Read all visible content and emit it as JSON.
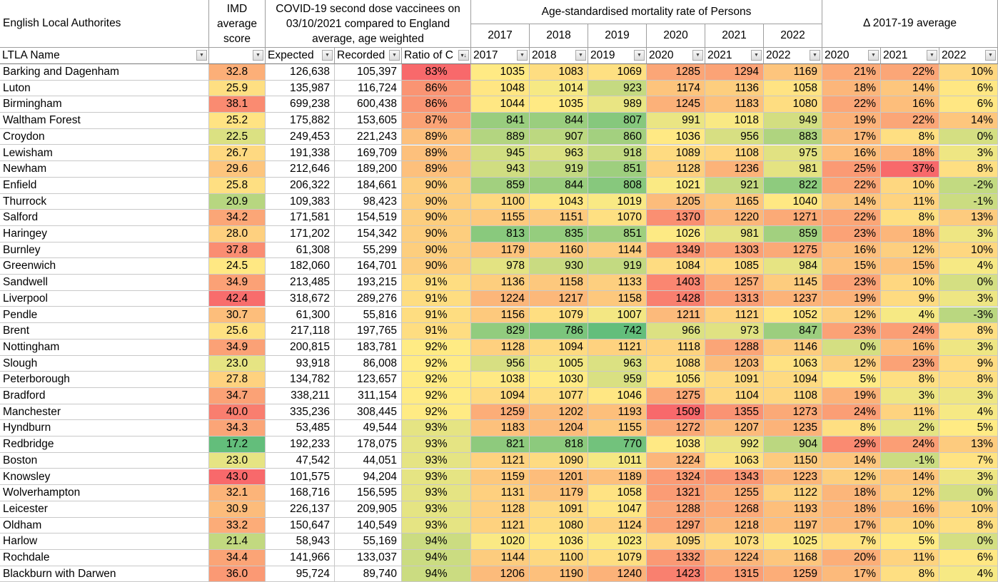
{
  "header": {
    "title": "English Local Authorites",
    "imd": "IMD average score",
    "covid": "COVID-19 second dose vaccinees on 03/10/2021 compared to England average, age weighted",
    "mortality": "Age-standardised mortality rate of Persons",
    "delta": "Δ 2017-19 average",
    "years": [
      "2017",
      "2018",
      "2019",
      "2020",
      "2021",
      "2022"
    ]
  },
  "filters": [
    "LTLA Name",
    "",
    "Expected",
    "Recorded",
    "Ratio of C",
    "2017",
    "2018",
    "2019",
    "2020",
    "2021",
    "2022",
    "2020",
    "2021",
    "2022"
  ],
  "colors": {
    "red": "#f8696b",
    "yellow": "#ffeb84",
    "green": "#63be7b",
    "grid": "#c8c8c8",
    "header_border": "#9e9e9e"
  },
  "icons": {
    "filter_dropdown": "dropdown-arrow-icon",
    "sort_dropdown": "sorted-filter-icon"
  },
  "rows": [
    {
      "name": "Barking and Dagenham",
      "imd": "32.8",
      "expected": "126,638",
      "recorded": "105,397",
      "ratio": "83%",
      "mort": [
        "1035",
        "1083",
        "1069",
        "1285",
        "1294",
        "1169"
      ],
      "delta": [
        "21%",
        "22%",
        "10%"
      ]
    },
    {
      "name": "Luton",
      "imd": "25.9",
      "expected": "135,987",
      "recorded": "116,724",
      "ratio": "86%",
      "mort": [
        "1048",
        "1014",
        "923",
        "1174",
        "1136",
        "1058"
      ],
      "delta": [
        "18%",
        "14%",
        "6%"
      ]
    },
    {
      "name": "Birmingham",
      "imd": "38.1",
      "expected": "699,238",
      "recorded": "600,438",
      "ratio": "86%",
      "mort": [
        "1044",
        "1035",
        "989",
        "1245",
        "1183",
        "1080"
      ],
      "delta": [
        "22%",
        "16%",
        "6%"
      ]
    },
    {
      "name": "Waltham Forest",
      "imd": "25.2",
      "expected": "175,882",
      "recorded": "153,605",
      "ratio": "87%",
      "mort": [
        "841",
        "844",
        "807",
        "991",
        "1018",
        "949"
      ],
      "delta": [
        "19%",
        "22%",
        "14%"
      ]
    },
    {
      "name": "Croydon",
      "imd": "22.5",
      "expected": "249,453",
      "recorded": "221,243",
      "ratio": "89%",
      "mort": [
        "889",
        "907",
        "860",
        "1036",
        "956",
        "883"
      ],
      "delta": [
        "17%",
        "8%",
        "0%"
      ]
    },
    {
      "name": "Lewisham",
      "imd": "26.7",
      "expected": "191,338",
      "recorded": "169,709",
      "ratio": "89%",
      "mort": [
        "945",
        "963",
        "918",
        "1089",
        "1108",
        "975"
      ],
      "delta": [
        "16%",
        "18%",
        "3%"
      ]
    },
    {
      "name": "Newham",
      "imd": "29.6",
      "expected": "212,646",
      "recorded": "189,200",
      "ratio": "89%",
      "mort": [
        "943",
        "919",
        "851",
        "1128",
        "1236",
        "981"
      ],
      "delta": [
        "25%",
        "37%",
        "8%"
      ]
    },
    {
      "name": "Enfield",
      "imd": "25.8",
      "expected": "206,322",
      "recorded": "184,661",
      "ratio": "90%",
      "mort": [
        "859",
        "844",
        "808",
        "1021",
        "921",
        "822"
      ],
      "delta": [
        "22%",
        "10%",
        "-2%"
      ]
    },
    {
      "name": "Thurrock",
      "imd": "20.9",
      "expected": "109,383",
      "recorded": "98,423",
      "ratio": "90%",
      "mort": [
        "1100",
        "1043",
        "1019",
        "1205",
        "1165",
        "1040"
      ],
      "delta": [
        "14%",
        "11%",
        "-1%"
      ]
    },
    {
      "name": "Salford",
      "imd": "34.2",
      "expected": "171,581",
      "recorded": "154,519",
      "ratio": "90%",
      "mort": [
        "1155",
        "1151",
        "1070",
        "1370",
        "1220",
        "1271"
      ],
      "delta": [
        "22%",
        "8%",
        "13%"
      ]
    },
    {
      "name": "Haringey",
      "imd": "28.0",
      "expected": "171,202",
      "recorded": "154,342",
      "ratio": "90%",
      "mort": [
        "813",
        "835",
        "851",
        "1026",
        "981",
        "859"
      ],
      "delta": [
        "23%",
        "18%",
        "3%"
      ]
    },
    {
      "name": "Burnley",
      "imd": "37.8",
      "expected": "61,308",
      "recorded": "55,299",
      "ratio": "90%",
      "mort": [
        "1179",
        "1160",
        "1144",
        "1349",
        "1303",
        "1275"
      ],
      "delta": [
        "16%",
        "12%",
        "10%"
      ]
    },
    {
      "name": "Greenwich",
      "imd": "24.5",
      "expected": "182,060",
      "recorded": "164,701",
      "ratio": "90%",
      "mort": [
        "978",
        "930",
        "919",
        "1084",
        "1085",
        "984"
      ],
      "delta": [
        "15%",
        "15%",
        "4%"
      ]
    },
    {
      "name": "Sandwell",
      "imd": "34.9",
      "expected": "213,485",
      "recorded": "193,215",
      "ratio": "91%",
      "mort": [
        "1136",
        "1158",
        "1133",
        "1403",
        "1257",
        "1145"
      ],
      "delta": [
        "23%",
        "10%",
        "0%"
      ]
    },
    {
      "name": "Liverpool",
      "imd": "42.4",
      "expected": "318,672",
      "recorded": "289,276",
      "ratio": "91%",
      "mort": [
        "1224",
        "1217",
        "1158",
        "1428",
        "1313",
        "1237"
      ],
      "delta": [
        "19%",
        "9%",
        "3%"
      ]
    },
    {
      "name": "Pendle",
      "imd": "30.7",
      "expected": "61,300",
      "recorded": "55,816",
      "ratio": "91%",
      "mort": [
        "1156",
        "1079",
        "1007",
        "1211",
        "1121",
        "1052"
      ],
      "delta": [
        "12%",
        "4%",
        "-3%"
      ]
    },
    {
      "name": "Brent",
      "imd": "25.6",
      "expected": "217,118",
      "recorded": "197,765",
      "ratio": "91%",
      "mort": [
        "829",
        "786",
        "742",
        "966",
        "973",
        "847"
      ],
      "delta": [
        "23%",
        "24%",
        "8%"
      ]
    },
    {
      "name": "Nottingham",
      "imd": "34.9",
      "expected": "200,815",
      "recorded": "183,781",
      "ratio": "92%",
      "mort": [
        "1128",
        "1094",
        "1121",
        "1118",
        "1288",
        "1146"
      ],
      "delta": [
        "0%",
        "16%",
        "3%"
      ]
    },
    {
      "name": "Slough",
      "imd": "23.0",
      "expected": "93,918",
      "recorded": "86,008",
      "ratio": "92%",
      "mort": [
        "956",
        "1005",
        "963",
        "1088",
        "1203",
        "1063"
      ],
      "delta": [
        "12%",
        "23%",
        "9%"
      ]
    },
    {
      "name": "Peterborough",
      "imd": "27.8",
      "expected": "134,782",
      "recorded": "123,657",
      "ratio": "92%",
      "mort": [
        "1038",
        "1030",
        "959",
        "1056",
        "1091",
        "1094"
      ],
      "delta": [
        "5%",
        "8%",
        "8%"
      ]
    },
    {
      "name": "Bradford",
      "imd": "34.7",
      "expected": "338,211",
      "recorded": "311,154",
      "ratio": "92%",
      "mort": [
        "1094",
        "1077",
        "1046",
        "1275",
        "1104",
        "1108"
      ],
      "delta": [
        "19%",
        "3%",
        "3%"
      ]
    },
    {
      "name": "Manchester",
      "imd": "40.0",
      "expected": "335,236",
      "recorded": "308,445",
      "ratio": "92%",
      "mort": [
        "1259",
        "1202",
        "1193",
        "1509",
        "1355",
        "1273"
      ],
      "delta": [
        "24%",
        "11%",
        "4%"
      ]
    },
    {
      "name": "Hyndburn",
      "imd": "34.3",
      "expected": "53,485",
      "recorded": "49,544",
      "ratio": "93%",
      "mort": [
        "1183",
        "1204",
        "1155",
        "1272",
        "1207",
        "1235"
      ],
      "delta": [
        "8%",
        "2%",
        "5%"
      ]
    },
    {
      "name": "Redbridge",
      "imd": "17.2",
      "expected": "192,233",
      "recorded": "178,075",
      "ratio": "93%",
      "mort": [
        "821",
        "818",
        "770",
        "1038",
        "992",
        "904"
      ],
      "delta": [
        "29%",
        "24%",
        "13%"
      ]
    },
    {
      "name": "Boston",
      "imd": "23.0",
      "expected": "47,542",
      "recorded": "44,051",
      "ratio": "93%",
      "mort": [
        "1121",
        "1090",
        "1011",
        "1224",
        "1063",
        "1150"
      ],
      "delta": [
        "14%",
        "-1%",
        "7%"
      ]
    },
    {
      "name": "Knowsley",
      "imd": "43.0",
      "expected": "101,575",
      "recorded": "94,204",
      "ratio": "93%",
      "mort": [
        "1159",
        "1201",
        "1189",
        "1324",
        "1343",
        "1223"
      ],
      "delta": [
        "12%",
        "14%",
        "3%"
      ]
    },
    {
      "name": "Wolverhampton",
      "imd": "32.1",
      "expected": "168,716",
      "recorded": "156,595",
      "ratio": "93%",
      "mort": [
        "1131",
        "1179",
        "1058",
        "1321",
        "1255",
        "1122"
      ],
      "delta": [
        "18%",
        "12%",
        "0%"
      ]
    },
    {
      "name": "Leicester",
      "imd": "30.9",
      "expected": "226,137",
      "recorded": "209,905",
      "ratio": "93%",
      "mort": [
        "1128",
        "1091",
        "1047",
        "1288",
        "1268",
        "1193"
      ],
      "delta": [
        "18%",
        "16%",
        "10%"
      ]
    },
    {
      "name": "Oldham",
      "imd": "33.2",
      "expected": "150,647",
      "recorded": "140,549",
      "ratio": "93%",
      "mort": [
        "1121",
        "1080",
        "1124",
        "1297",
        "1218",
        "1197"
      ],
      "delta": [
        "17%",
        "10%",
        "8%"
      ]
    },
    {
      "name": "Harlow",
      "imd": "21.4",
      "expected": "58,943",
      "recorded": "55,169",
      "ratio": "94%",
      "mort": [
        "1020",
        "1036",
        "1023",
        "1095",
        "1073",
        "1025"
      ],
      "delta": [
        "7%",
        "5%",
        "0%"
      ]
    },
    {
      "name": "Rochdale",
      "imd": "34.4",
      "expected": "141,966",
      "recorded": "133,037",
      "ratio": "94%",
      "mort": [
        "1144",
        "1100",
        "1079",
        "1332",
        "1224",
        "1168"
      ],
      "delta": [
        "20%",
        "11%",
        "6%"
      ]
    },
    {
      "name": "Blackburn with Darwen",
      "imd": "36.0",
      "expected": "95,724",
      "recorded": "89,740",
      "ratio": "94%",
      "mort": [
        "1206",
        "1190",
        "1240",
        "1423",
        "1315",
        "1259"
      ],
      "delta": [
        "17%",
        "8%",
        "4%"
      ]
    }
  ]
}
